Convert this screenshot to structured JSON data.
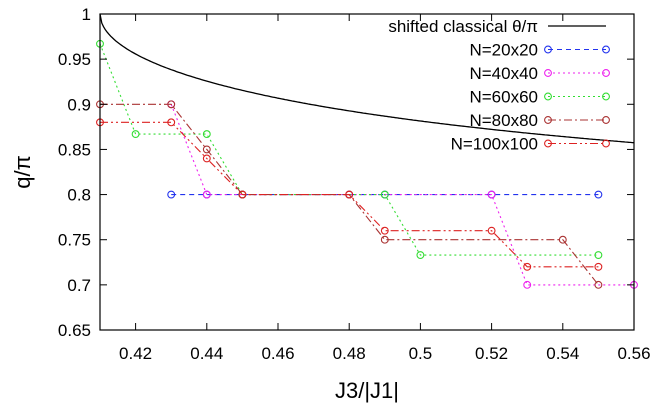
{
  "chart_data": {
    "type": "line",
    "title": "",
    "xlabel": "J3/|J1|",
    "ylabel": "q/π",
    "xlim": [
      0.41,
      0.56
    ],
    "ylim": [
      0.65,
      1.0
    ],
    "xticks": [
      0.42,
      0.44,
      0.46,
      0.48,
      0.5,
      0.52,
      0.54,
      0.56
    ],
    "yticks": [
      0.65,
      0.7,
      0.75,
      0.8,
      0.85,
      0.9,
      0.95,
      1.0
    ],
    "xtick_labels": [
      "0.42",
      "0.44",
      "0.46",
      "0.48",
      "0.5",
      "0.52",
      "0.54",
      "0.56"
    ],
    "ytick_labels": [
      "0.65",
      "0.7",
      "0.75",
      "0.8",
      "0.85",
      "0.9",
      "0.95",
      "1"
    ],
    "legend_position": "top-right",
    "grid": false,
    "series": [
      {
        "name": "shifted classical θ/π",
        "color": "#000000",
        "style": "solid",
        "markers": false,
        "function": "shifted-classical"
      },
      {
        "name": "N=20x20",
        "color": "#2233ee",
        "style": "dashed",
        "markers": true,
        "x": [
          0.43,
          0.44,
          0.45,
          0.48,
          0.49,
          0.52,
          0.55
        ],
        "y": [
          0.8,
          0.8,
          0.8,
          0.8,
          0.8,
          0.8,
          0.8
        ]
      },
      {
        "name": "N=40x40",
        "color": "#ee22ee",
        "style": "dotted",
        "markers": true,
        "x": [
          0.43,
          0.44,
          0.52,
          0.53,
          0.56
        ],
        "y": [
          0.9,
          0.8,
          0.8,
          0.7,
          0.7
        ]
      },
      {
        "name": "N=60x60",
        "color": "#33dd33",
        "style": "dotted",
        "markers": true,
        "x": [
          0.41,
          0.42,
          0.44,
          0.45,
          0.49,
          0.5,
          0.55
        ],
        "y": [
          0.967,
          0.867,
          0.867,
          0.8,
          0.8,
          0.733,
          0.733
        ]
      },
      {
        "name": "N=80x80",
        "color": "#aa3333",
        "style": "dashdot",
        "markers": true,
        "x": [
          0.41,
          0.43,
          0.44,
          0.45,
          0.48,
          0.49,
          0.54,
          0.55
        ],
        "y": [
          0.9,
          0.9,
          0.85,
          0.8,
          0.8,
          0.75,
          0.75,
          0.7
        ]
      },
      {
        "name": "N=100x100",
        "color": "#dd2222",
        "style": "dashdotdot",
        "markers": true,
        "x": [
          0.41,
          0.43,
          0.44,
          0.45,
          0.48,
          0.49,
          0.52,
          0.53,
          0.55
        ],
        "y": [
          0.88,
          0.88,
          0.84,
          0.8,
          0.8,
          0.76,
          0.76,
          0.72,
          0.72
        ]
      }
    ]
  }
}
